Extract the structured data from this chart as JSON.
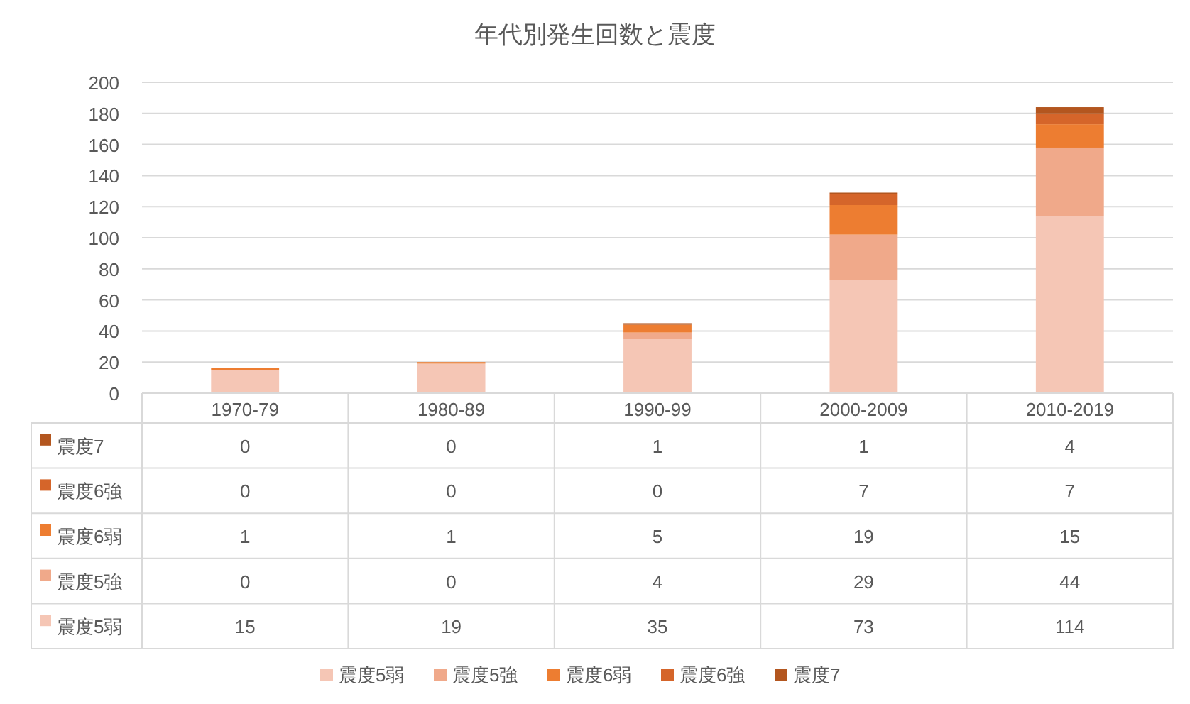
{
  "chart_data": {
    "type": "bar",
    "stacked": true,
    "title": "年代別発生回数と震度",
    "categories": [
      "1970-79",
      "1980-89",
      "1990-99",
      "2000-2009",
      "2010-2019"
    ],
    "series": [
      {
        "name": "震度5弱",
        "color": "#f5c6b5",
        "values": [
          15,
          19,
          35,
          73,
          114
        ]
      },
      {
        "name": "震度5強",
        "color": "#f0a98a",
        "values": [
          0,
          0,
          4,
          29,
          44
        ]
      },
      {
        "name": "震度6弱",
        "color": "#ed7d31",
        "values": [
          1,
          1,
          5,
          19,
          15
        ]
      },
      {
        "name": "震度6強",
        "color": "#d5652a",
        "values": [
          0,
          0,
          0,
          7,
          7
        ]
      },
      {
        "name": "震度7",
        "color": "#b3561f",
        "values": [
          0,
          0,
          1,
          1,
          4
        ]
      }
    ],
    "ylim": [
      0,
      200
    ],
    "yticks": [
      0,
      20,
      40,
      60,
      80,
      100,
      120,
      140,
      160,
      180,
      200
    ],
    "grid": "y",
    "legend": "bottom",
    "data_labels": true
  }
}
